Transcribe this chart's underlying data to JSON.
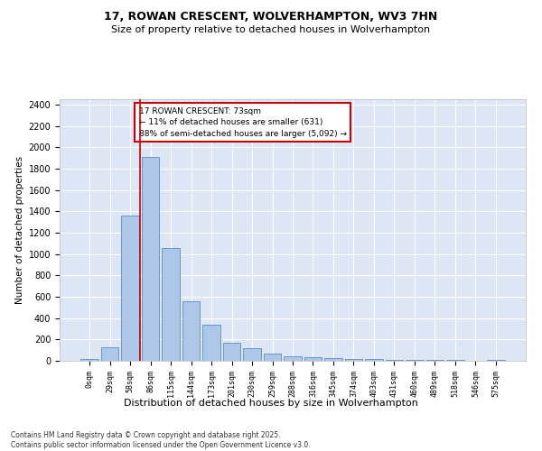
{
  "title1": "17, ROWAN CRESCENT, WOLVERHAMPTON, WV3 7HN",
  "title2": "Size of property relative to detached houses in Wolverhampton",
  "xlabel": "Distribution of detached houses by size in Wolverhampton",
  "ylabel": "Number of detached properties",
  "footnote": "Contains HM Land Registry data © Crown copyright and database right 2025.\nContains public sector information licensed under the Open Government Licence v3.0.",
  "bar_labels": [
    "0sqm",
    "29sqm",
    "58sqm",
    "86sqm",
    "115sqm",
    "144sqm",
    "173sqm",
    "201sqm",
    "230sqm",
    "259sqm",
    "288sqm",
    "316sqm",
    "345sqm",
    "374sqm",
    "403sqm",
    "431sqm",
    "460sqm",
    "489sqm",
    "518sqm",
    "546sqm",
    "575sqm"
  ],
  "bar_heights": [
    15,
    125,
    1360,
    1910,
    1055,
    560,
    335,
    170,
    115,
    65,
    40,
    30,
    25,
    20,
    15,
    10,
    8,
    5,
    5,
    3,
    10
  ],
  "bar_color": "#aec6e8",
  "bar_edge_color": "#5a8fc2",
  "bg_color": "#dce6f5",
  "grid_color": "#ffffff",
  "vline_x": 2.5,
  "vline_color": "#cc0000",
  "annotation_text": "17 ROWAN CRESCENT: 73sqm\n← 11% of detached houses are smaller (631)\n88% of semi-detached houses are larger (5,092) →",
  "annotation_box_color": "#cc0000",
  "ylim": [
    0,
    2450
  ],
  "yticks": [
    0,
    200,
    400,
    600,
    800,
    1000,
    1200,
    1400,
    1600,
    1800,
    2000,
    2200,
    2400
  ],
  "fig_bg": "#ffffff"
}
